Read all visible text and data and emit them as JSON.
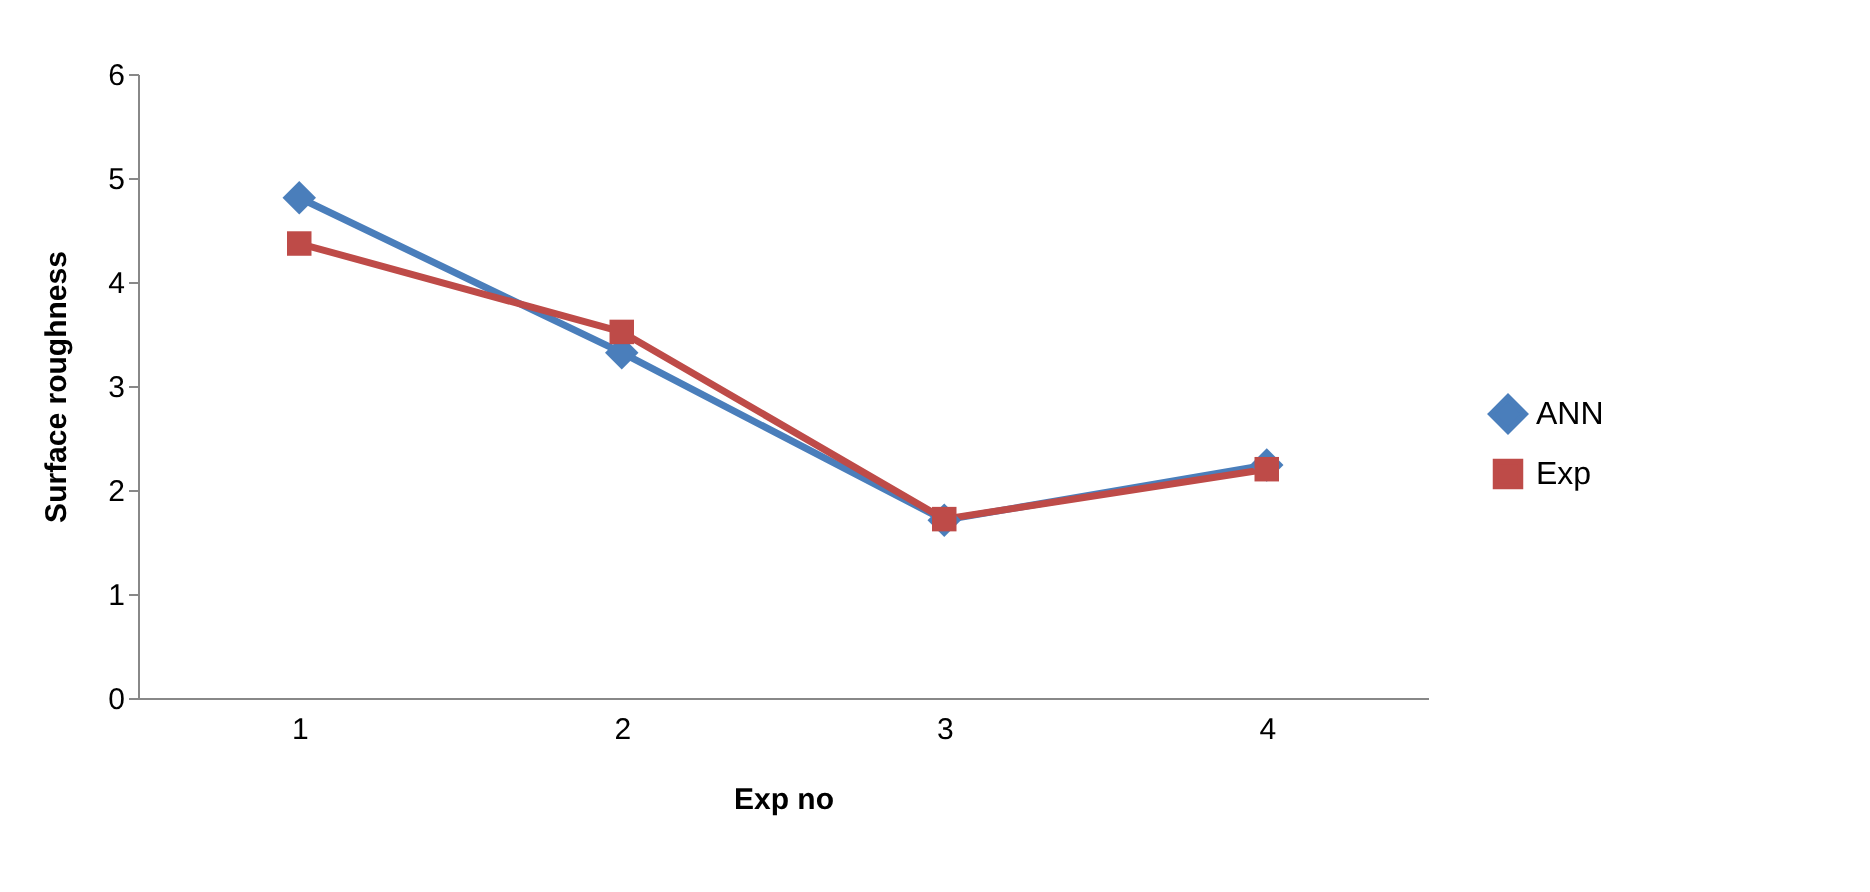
{
  "chart_data": {
    "type": "line",
    "xlabel": "Exp no",
    "ylabel": "Surface roughness",
    "categories": [
      "1",
      "2",
      "3",
      "4"
    ],
    "series": [
      {
        "name": "ANN",
        "color": "#4a7ebb",
        "marker": "diamond",
        "values": [
          4.81,
          3.32,
          1.71,
          2.24
        ]
      },
      {
        "name": "Exp",
        "color": "#be4b48",
        "marker": "square",
        "values": [
          4.37,
          3.52,
          1.72,
          2.2
        ]
      }
    ],
    "ylim": [
      0,
      6
    ],
    "yticks": [
      0,
      1,
      2,
      3,
      4,
      5,
      6
    ],
    "grid": false,
    "legend": "right",
    "line_style": "solid"
  }
}
